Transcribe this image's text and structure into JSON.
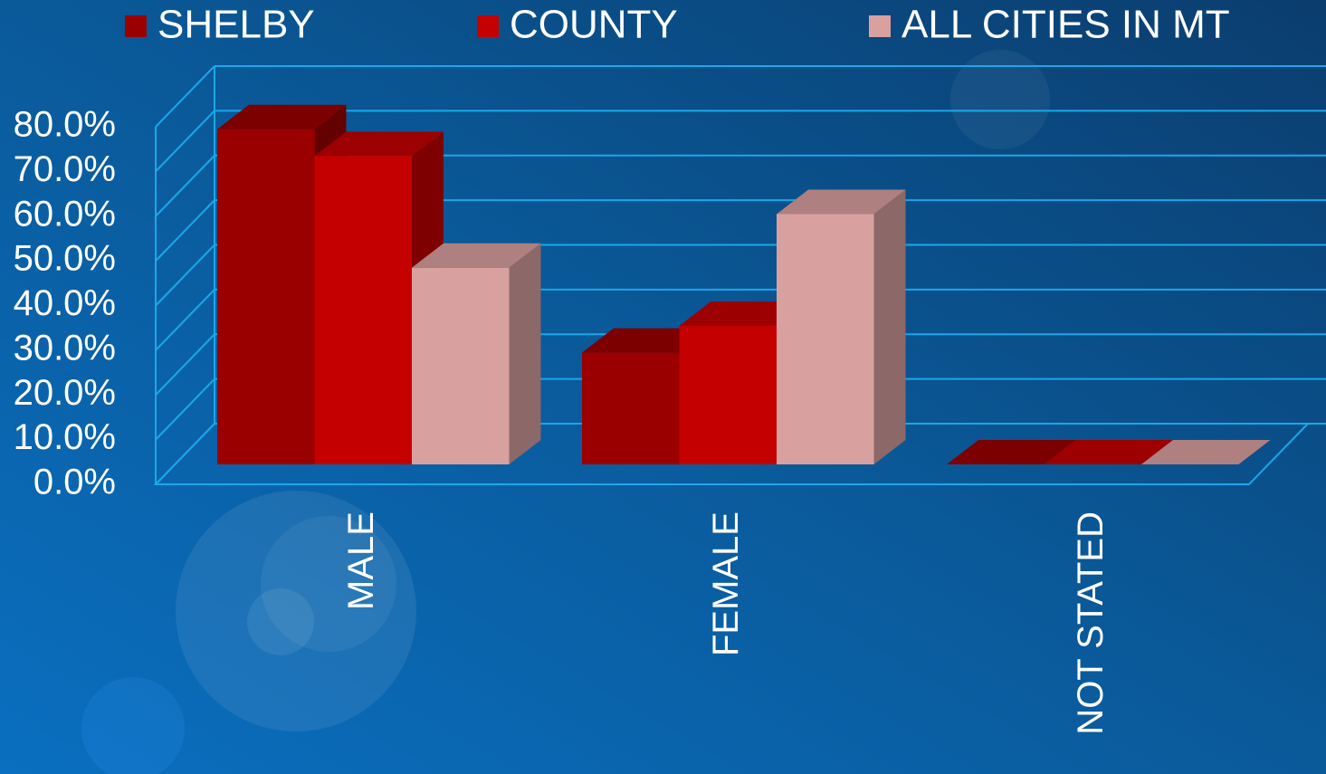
{
  "chart_data": {
    "type": "bar3d",
    "categories": [
      "MALE",
      "FEMALE",
      "NOT STATED"
    ],
    "series": [
      {
        "name": "SHELBY",
        "color": "#9b0000",
        "values": [
          75,
          25,
          0
        ]
      },
      {
        "name": "COUNTY",
        "color": "#c40000",
        "values": [
          69,
          31,
          0
        ]
      },
      {
        "name": "ALL CITIES IN MT",
        "color": "#d9a0a0",
        "values": [
          44,
          56,
          0
        ]
      }
    ],
    "ylim": [
      0,
      80
    ],
    "yticks": [
      {
        "value": 0,
        "label": "0.0%"
      },
      {
        "value": 10,
        "label": "10.0%"
      },
      {
        "value": 20,
        "label": "20.0%"
      },
      {
        "value": 30,
        "label": "30.0%"
      },
      {
        "value": 40,
        "label": "40.0%"
      },
      {
        "value": 50,
        "label": "50.0%"
      },
      {
        "value": 60,
        "label": "60.0%"
      },
      {
        "value": 70,
        "label": "70.0%"
      },
      {
        "value": 80,
        "label": "80.0%"
      }
    ],
    "grid": true
  }
}
